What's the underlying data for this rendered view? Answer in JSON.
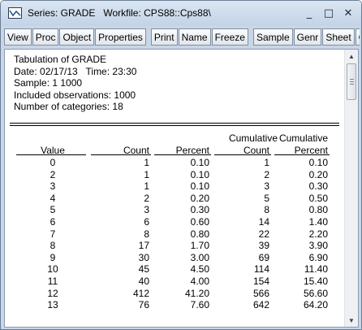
{
  "titlebar": {
    "title": "Series: GRADE   Workfile: CPS88::Cps88\\",
    "icon": "series-window-icon",
    "minimize": "_",
    "maximize": "□",
    "close": "✕"
  },
  "toolbar": {
    "buttons": [
      "View",
      "Proc",
      "Object",
      "Properties",
      "Print",
      "Name",
      "Freeze",
      "Sample",
      "Genr",
      "Sheet",
      "Gr"
    ]
  },
  "output": {
    "heading": "Tabulation of GRADE",
    "date_line": "Date: 02/17/13   Time: 23:30",
    "sample_line": "Sample: 1 1000",
    "obs_line": "Included observations: 1000",
    "categories_line": "Number of categories: 18"
  },
  "table": {
    "headers": {
      "value": "Value",
      "count": "Count",
      "percent": "Percent",
      "cum_top1": "Cumulative",
      "cum_count": "Count",
      "cum_top2": "Cumulative",
      "cum_percent": "Percent"
    },
    "rows": [
      [
        "0",
        "1",
        "0.10",
        "1",
        "0.10"
      ],
      [
        "2",
        "1",
        "0.10",
        "2",
        "0.20"
      ],
      [
        "3",
        "1",
        "0.10",
        "3",
        "0.30"
      ],
      [
        "4",
        "2",
        "0.20",
        "5",
        "0.50"
      ],
      [
        "5",
        "3",
        "0.30",
        "8",
        "0.80"
      ],
      [
        "6",
        "6",
        "0.60",
        "14",
        "1.40"
      ],
      [
        "7",
        "8",
        "0.80",
        "22",
        "2.20"
      ],
      [
        "8",
        "17",
        "1.70",
        "39",
        "3.90"
      ],
      [
        "9",
        "30",
        "3.00",
        "69",
        "6.90"
      ],
      [
        "10",
        "45",
        "4.50",
        "114",
        "11.40"
      ],
      [
        "11",
        "40",
        "4.00",
        "154",
        "15.40"
      ],
      [
        "12",
        "412",
        "41.20",
        "566",
        "56.60"
      ],
      [
        "13",
        "76",
        "7.60",
        "642",
        "64.20"
      ]
    ]
  },
  "scrollbar": {
    "up_icon": "scroll-up-arrow-icon",
    "down_icon": "scroll-down-arrow-icon"
  }
}
